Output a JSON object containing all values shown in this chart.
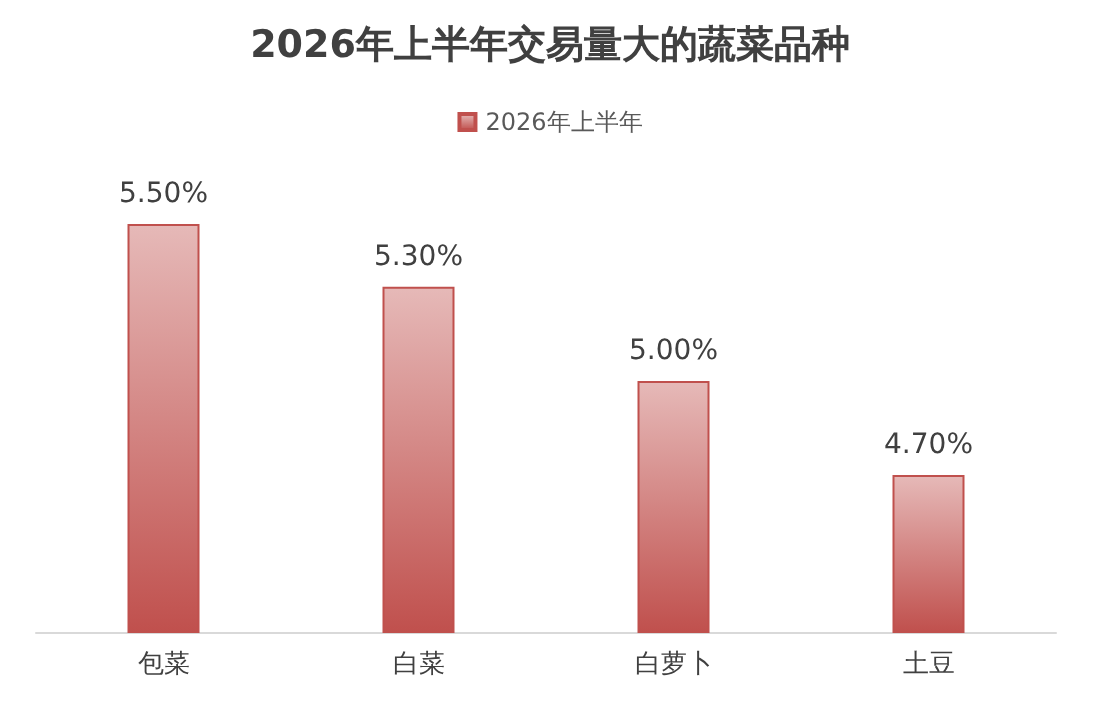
{
  "chart_data": {
    "type": "bar",
    "title": "2026年上半年交易量大的蔬菜品种",
    "categories": [
      "包菜",
      "白菜",
      "白萝卜",
      "土豆"
    ],
    "series": [
      {
        "name": "2026年上半年",
        "color": "#c0504d",
        "values": [
          5.5,
          5.3,
          5.0,
          4.7
        ],
        "value_labels": [
          "5.50%",
          "5.30%",
          "5.00%",
          "4.70%"
        ]
      }
    ],
    "ylim": [
      4.2,
      5.5
    ],
    "tick_labels": "x",
    "legend": "top"
  }
}
